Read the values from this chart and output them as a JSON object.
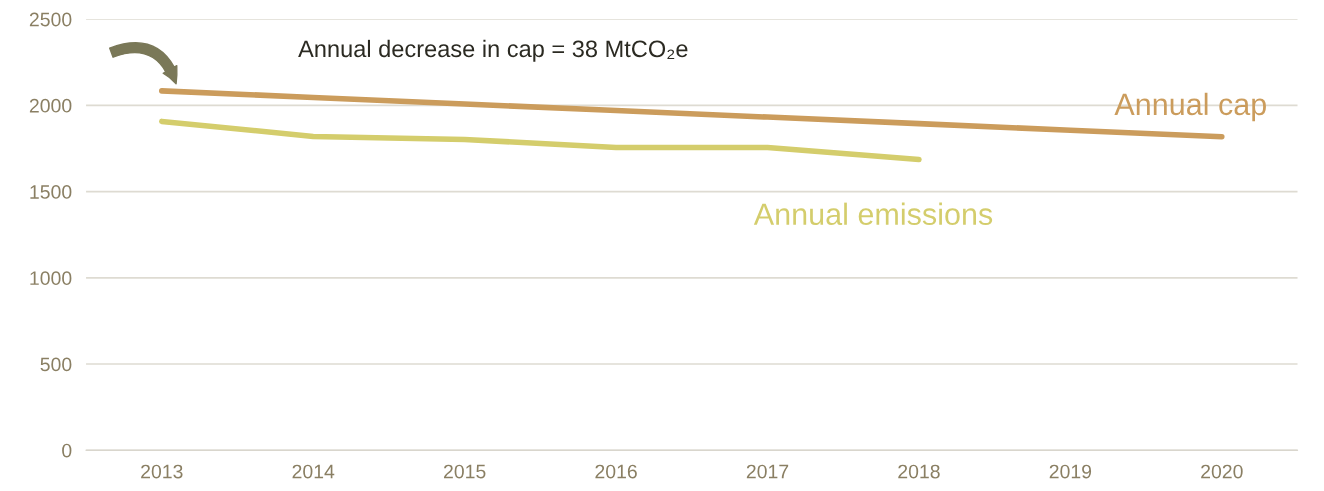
{
  "chart_data": {
    "type": "line",
    "categories": [
      "2013",
      "2014",
      "2015",
      "2016",
      "2017",
      "2018",
      "2019",
      "2020"
    ],
    "series": [
      {
        "name": "Annual cap",
        "color": "#cb9c5c",
        "values": [
          2084,
          2046,
          2008,
          1970,
          1932,
          1894,
          1856,
          1818
        ]
      },
      {
        "name": "Annual emissions",
        "color": "#d4cd6c",
        "values": [
          1907,
          1820,
          1802,
          1756,
          1756,
          1686,
          null,
          null
        ]
      }
    ],
    "ylim": [
      0,
      2500
    ],
    "yticks": [
      0,
      500,
      1000,
      1500,
      2000,
      2500
    ],
    "grid": "y",
    "legend": false,
    "marker": "none",
    "line_style": "solid",
    "annotations": [
      "Annual decrease in cap = 38 MtCO₂e"
    ]
  }
}
